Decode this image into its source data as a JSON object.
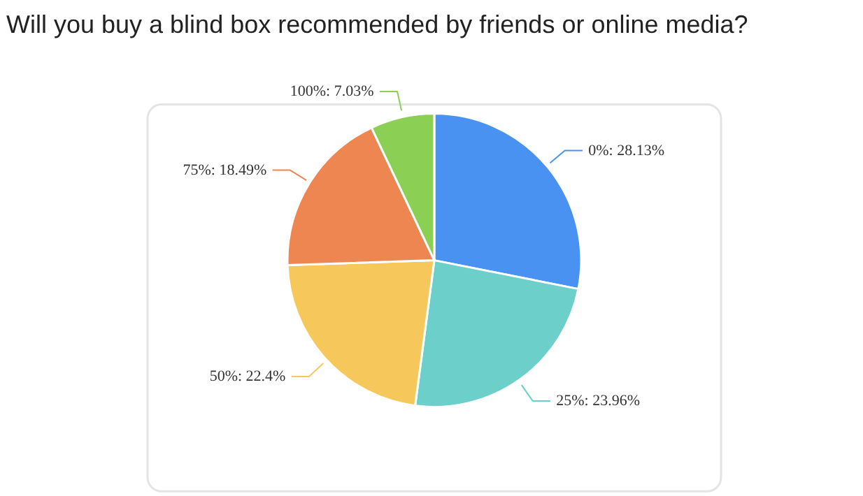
{
  "chart_data": {
    "type": "pie",
    "title": "Will you buy a blind box recommended by friends or online media?",
    "categories": [
      "0%",
      "25%",
      "50%",
      "75%",
      "100%"
    ],
    "values": [
      28.13,
      23.96,
      22.4,
      18.49,
      7.03
    ],
    "colors": [
      "#4a92f1",
      "#6ccfca",
      "#f6c85c",
      "#ee8652",
      "#8ccf55"
    ],
    "value_labels": [
      "28.13%",
      "23.96%",
      "22.4%",
      "18.49%",
      "7.03%"
    ],
    "legend": false
  }
}
